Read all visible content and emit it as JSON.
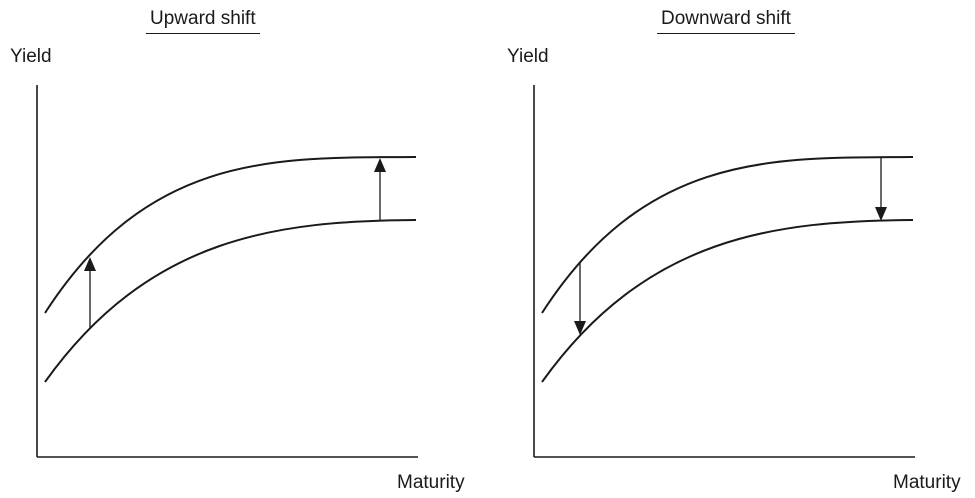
{
  "panels": [
    {
      "title": "Upward shift",
      "y_axis_label": "Yield",
      "x_axis_label": "Maturity",
      "shift_direction": "up",
      "curves": [
        "initial",
        "shifted"
      ]
    },
    {
      "title": "Downward shift",
      "y_axis_label": "Yield",
      "x_axis_label": "Maturity",
      "shift_direction": "down",
      "curves": [
        "initial",
        "shifted"
      ]
    }
  ],
  "colors": {
    "ink": "#1a1a1a",
    "background": "#ffffff"
  }
}
